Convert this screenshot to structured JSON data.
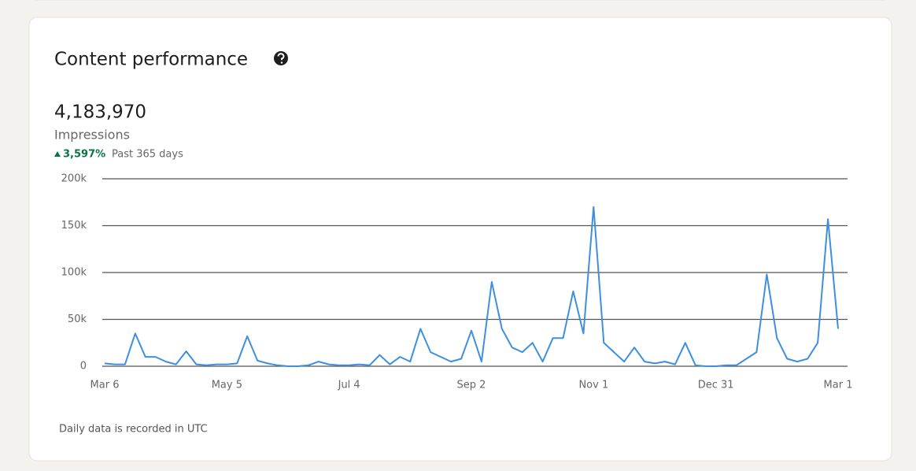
{
  "chart_data": {
    "type": "line",
    "title": "Content performance",
    "metric_value": "4,183,970",
    "metric_label": "Impressions",
    "change": "3,597%",
    "period": "Past 365 days",
    "note": "Daily data is recorded in UTC",
    "color": "#3d8fdf",
    "grid": true,
    "categories": [
      "Mar 6",
      null,
      null,
      null,
      null,
      null,
      null,
      null,
      null,
      null,
      null,
      null,
      "May 5",
      null,
      null,
      null,
      null,
      null,
      null,
      null,
      null,
      null,
      null,
      null,
      "Jul 4",
      null,
      null,
      null,
      null,
      null,
      null,
      null,
      null,
      null,
      null,
      null,
      "Sep 2",
      null,
      null,
      null,
      null,
      null,
      null,
      null,
      null,
      null,
      null,
      null,
      "Nov 1",
      null,
      null,
      null,
      null,
      null,
      null,
      null,
      null,
      null,
      null,
      null,
      "Dec 31",
      null,
      null,
      null,
      null,
      null,
      null,
      null,
      null,
      null,
      null,
      null,
      "Mar 1"
    ],
    "values": [
      3000,
      2000,
      2000,
      35000,
      10000,
      10000,
      5000,
      2000,
      16000,
      2000,
      1000,
      2000,
      2000,
      3000,
      32000,
      6000,
      3000,
      1000,
      0,
      0,
      1000,
      5000,
      2000,
      1000,
      1000,
      2000,
      1000,
      12000,
      2000,
      10000,
      5000,
      40000,
      15000,
      10000,
      5000,
      8000,
      38000,
      5000,
      90000,
      40000,
      20000,
      15000,
      25000,
      5000,
      30000,
      30000,
      80000,
      35000,
      170000,
      25000,
      15000,
      5000,
      20000,
      5000,
      3000,
      5000,
      2000,
      25000,
      1000,
      0,
      0,
      1000,
      1000,
      8000,
      15000,
      98000,
      30000,
      8000,
      5000,
      8000,
      25000,
      157000,
      40000
    ],
    "ylim": [
      0,
      200000
    ],
    "yticks": [
      0,
      {
        "value": 50000,
        "label": "50k"
      },
      {
        "value": 100000,
        "label": "100k"
      },
      {
        "value": 150000,
        "label": "150k"
      },
      {
        "value": 200000,
        "label": "200k"
      }
    ]
  }
}
